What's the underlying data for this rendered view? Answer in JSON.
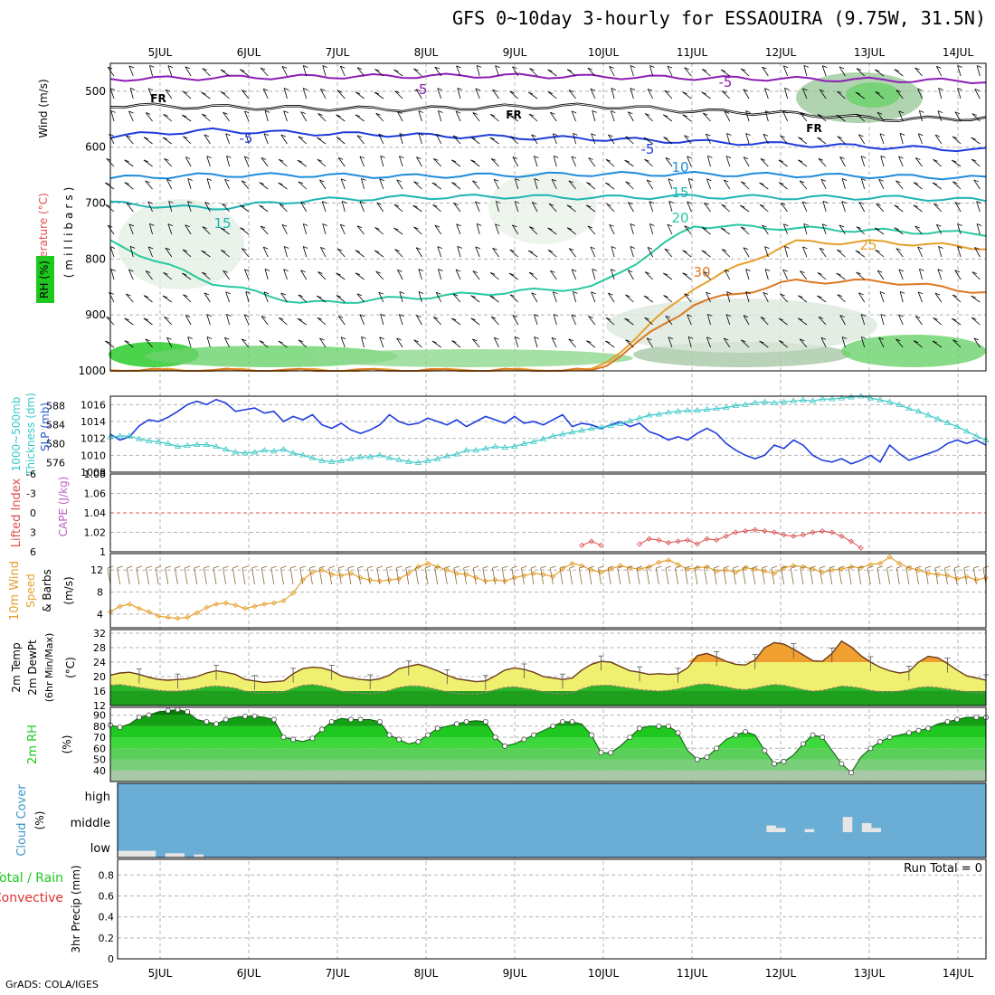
{
  "title": "GFS 0~10day 3-hourly for ESSAOUIRA (9.75W, 31.5N)",
  "credit": "GrADS: COLA/IGES",
  "run_total": "Run Total = 0",
  "colors": {
    "grid": "#b4b4b4",
    "slp": "#1e3cdc",
    "thickness": "#3cc8c8",
    "wind10m": "#e6a02d",
    "barb": "#8a6a3c",
    "cape_zero": "#e05050",
    "cape_line": "#dc5050",
    "rh2m": "#1ec81e",
    "cloud": "#6aaed6",
    "cloud_bar": "#e6e6e6",
    "temp_fill_low": "#f0f070",
    "temp_fill_high": "#f0a030",
    "dewpt_band": "#28b428"
  },
  "chart_data": [
    {
      "type": "contour",
      "panel": "upper-air",
      "ylabel": [
        "Temperature (°C)",
        "Wind (m/s)",
        "(millibars)",
        "RH (%)"
      ],
      "x_ticks": [
        "5JUL",
        "6JUL",
        "7JUL",
        "8JUL",
        "9JUL",
        "10JUL",
        "11JUL",
        "12JUL",
        "13JUL",
        "14JUL"
      ],
      "y_ticks": [
        500,
        600,
        700,
        800,
        900,
        1000
      ],
      "ylim": [
        450,
        1000
      ],
      "contour_labels": [
        "-5",
        "-5",
        "FR",
        "FR",
        "FR",
        "-5",
        "-5",
        "10",
        "15",
        "20",
        "15",
        "25",
        "30"
      ],
      "isotherms": [
        {
          "value": "-5",
          "color": "#8c1eb4",
          "p": [
            478,
            476,
            474,
            473,
            472,
            474,
            476,
            478,
            480,
            482
          ]
        },
        {
          "value": "FR",
          "color": "#000000",
          "p": [
            525,
            528,
            530,
            532,
            528,
            526,
            535,
            540,
            550,
            548
          ]
        },
        {
          "value": "-5",
          "color": "#1e3cdc",
          "p": [
            580,
            570,
            575,
            578,
            582,
            585,
            590,
            595,
            600,
            605
          ]
        },
        {
          "value": "10",
          "color": "#1e8cdc",
          "p": [
            655,
            650,
            650,
            652,
            650,
            648,
            648,
            650,
            652,
            655
          ]
        },
        {
          "value": "15",
          "color": "#1eb4b4",
          "p": [
            700,
            710,
            695,
            690,
            688,
            690,
            688,
            690,
            690,
            695
          ]
        },
        {
          "value": "20",
          "color": "#28c8a0",
          "p": [
            770,
            840,
            880,
            870,
            860,
            850,
            740,
            745,
            750,
            755
          ]
        },
        {
          "value": "25",
          "color": "#e6a02d",
          "p": [
            1000,
            1000,
            1000,
            1000,
            1000,
            1000,
            850,
            770,
            770,
            780
          ]
        },
        {
          "value": "30",
          "color": "#dc7820",
          "p": [
            1000,
            1000,
            1000,
            1000,
            1000,
            1000,
            880,
            840,
            840,
            860
          ]
        }
      ]
    },
    {
      "type": "line",
      "panel": "slp-thickness",
      "ylabel_left": [
        "1000~500mb",
        "Thickness (dm)"
      ],
      "ylabel_right": "SLP (mb)",
      "y_ticks_left": [
        576,
        580,
        584,
        588
      ],
      "y_ticks_right": [
        1008,
        1010,
        1012,
        1014,
        1016
      ],
      "ylim_right": [
        1008,
        1017
      ],
      "ylim_left": [
        574,
        590
      ],
      "series": [
        {
          "axis": "right",
          "values": [
            1012.5,
            1011.8,
            1012.2,
            1013.5,
            1014.2,
            1014.0,
            1014.5,
            1015.2,
            1016.0,
            1016.4,
            1016.0,
            1016.6,
            1016.2,
            1015.2,
            1015.4,
            1015.6,
            1015.0,
            1015.2,
            1014.0,
            1014.6,
            1014.2,
            1014.8,
            1013.6,
            1013.2,
            1013.8,
            1013.0,
            1012.6,
            1013.0,
            1013.6,
            1014.8,
            1014.0,
            1013.6,
            1013.8,
            1014.4,
            1014.0,
            1013.6,
            1014.2,
            1013.4,
            1014.0,
            1014.6,
            1014.2,
            1013.8,
            1014.6,
            1013.8,
            1014.0,
            1013.6,
            1014.2,
            1014.8,
            1013.4,
            1013.8,
            1013.6,
            1013.2,
            1013.6,
            1014.0,
            1013.4,
            1013.8,
            1012.8,
            1012.4,
            1011.8,
            1012.2,
            1011.8,
            1012.6,
            1013.2,
            1012.6,
            1011.4,
            1010.6,
            1010.0,
            1009.6,
            1010.0,
            1011.2,
            1010.8,
            1011.8,
            1011.2,
            1010.0,
            1009.4,
            1009.2,
            1009.6,
            1009.0,
            1009.4,
            1010.0,
            1009.2,
            1011.2,
            1010.2,
            1009.4,
            1009.8,
            1010.2,
            1010.6,
            1011.4,
            1011.8,
            1011.4,
            1011.8,
            1011.2
          ]
        },
        {
          "axis": "left",
          "values": [
            581.4,
            581.6,
            581.6,
            581.0,
            580.6,
            580.4,
            580.0,
            579.4,
            579.6,
            579.8,
            579.8,
            579.4,
            578.8,
            578.2,
            578.0,
            578.2,
            578.6,
            578.4,
            578.8,
            578.0,
            577.6,
            577.0,
            576.4,
            576.2,
            576.4,
            576.8,
            577.2,
            577.2,
            577.6,
            577.0,
            576.6,
            576.2,
            576.0,
            576.4,
            576.8,
            577.4,
            577.8,
            578.6,
            578.6,
            579.0,
            579.4,
            579.2,
            579.4,
            580.0,
            580.4,
            581.0,
            581.6,
            582.0,
            582.4,
            582.8,
            583.2,
            583.4,
            583.8,
            584.2,
            584.8,
            585.4,
            586.0,
            586.2,
            586.6,
            586.8,
            587.0,
            587.0,
            587.2,
            587.4,
            587.6,
            588.0,
            588.2,
            588.6,
            588.8,
            588.6,
            588.8,
            589.0,
            589.2,
            589.0,
            589.4,
            589.4,
            589.6,
            589.8,
            590.0,
            589.6,
            589.2,
            588.8,
            588.2,
            587.4,
            586.8,
            586.0,
            585.2,
            584.4,
            583.6,
            582.6,
            581.6,
            580.8
          ]
        }
      ]
    },
    {
      "type": "line",
      "panel": "lifted-index-cape",
      "ylabel_left": "Lifted Index",
      "ylabel_right": "CAPE (J/kg)",
      "y_ticks_left": [
        -6,
        -3,
        0,
        3,
        6
      ],
      "y_ticks_right": [
        1,
        1.02,
        1.04,
        1.06,
        1.08
      ],
      "ylim_left": [
        -6,
        6
      ],
      "cape_segments": [
        {
          "x_start": 49,
          "values": [
            5.0,
            4.4,
            5.0
          ]
        },
        {
          "x_start": 55,
          "values": [
            4.8,
            4.0,
            4.2,
            4.6,
            4.4,
            4.2,
            4.8,
            4.0,
            4.2,
            3.6,
            3.0,
            2.8,
            2.6,
            2.8,
            3.0,
            3.4,
            3.6,
            3.4,
            3.0,
            2.8,
            3.0,
            3.6,
            4.4,
            5.4
          ]
        }
      ]
    },
    {
      "type": "line",
      "panel": "wind10m",
      "ylabel": [
        "10m Wind",
        "Speed",
        "& Barbs",
        "(m/s)"
      ],
      "y_ticks": [
        4,
        8,
        12
      ],
      "ylim": [
        1.5,
        15
      ],
      "series": [
        {
          "name": "",
          "values": [
            4.4,
            5.4,
            5.8,
            5.0,
            4.4,
            3.6,
            3.4,
            3.2,
            3.4,
            4.2,
            5.2,
            5.8,
            6.0,
            5.6,
            5.0,
            5.4,
            5.8,
            6.0,
            6.4,
            7.8,
            10.2,
            11.6,
            12.0,
            11.2,
            11.0,
            11.4,
            10.6,
            10.2,
            10.0,
            10.2,
            10.4,
            11.4,
            12.6,
            13.2,
            12.6,
            12.0,
            11.4,
            11.2,
            10.6,
            10.0,
            10.2,
            10.0,
            10.6,
            11.0,
            11.4,
            11.2,
            10.8,
            12.2,
            13.2,
            12.8,
            12.0,
            11.6,
            12.2,
            12.8,
            12.4,
            12.2,
            12.6,
            13.4,
            13.8,
            13.0,
            12.2,
            12.4,
            12.6,
            11.8,
            12.0,
            11.6,
            12.4,
            12.2,
            11.8,
            11.4,
            12.4,
            12.8,
            12.6,
            12.2,
            11.6,
            12.0,
            12.2,
            12.6,
            12.4,
            13.0,
            13.2,
            14.4,
            13.2,
            12.4,
            12.0,
            11.4,
            11.2,
            11.0,
            10.4,
            10.8,
            10.2,
            10.6
          ]
        }
      ]
    },
    {
      "type": "area",
      "panel": "2m-temp",
      "ylabel": [
        "2m Temp",
        "2m DewPt",
        "(6hr Min/Max)",
        "(°C)"
      ],
      "y_ticks": [
        12,
        16,
        20,
        24,
        28,
        32
      ],
      "ylim": [
        12,
        33
      ],
      "series": [
        {
          "name": "2m Temp",
          "values": [
            20.4,
            21.0,
            21.2,
            20.6,
            19.8,
            19.2,
            19.0,
            19.2,
            19.4,
            20.0,
            21.0,
            21.6,
            21.2,
            20.6,
            19.2,
            18.8,
            18.4,
            18.6,
            18.8,
            20.8,
            22.2,
            22.6,
            22.4,
            21.6,
            20.2,
            19.6,
            19.2,
            19.0,
            19.4,
            20.4,
            22.2,
            22.8,
            23.4,
            22.6,
            21.6,
            20.4,
            19.4,
            19.0,
            18.6,
            18.8,
            20.2,
            21.8,
            22.4,
            22.0,
            21.2,
            20.0,
            19.6,
            19.2,
            19.6,
            21.8,
            23.4,
            24.2,
            24.0,
            22.8,
            21.6,
            21.2,
            20.6,
            20.8,
            20.6,
            20.8,
            22.4,
            25.8,
            26.4,
            25.4,
            24.2,
            23.4,
            23.2,
            24.6,
            28.0,
            29.4,
            29.0,
            27.6,
            26.0,
            24.4,
            24.2,
            26.4,
            29.8,
            28.2,
            25.8,
            24.0,
            22.6,
            21.6,
            21.0,
            21.4,
            24.0,
            25.6,
            25.2,
            23.6,
            21.8,
            20.2,
            19.6,
            19.0
          ]
        },
        {
          "name": "2m DewPt",
          "values": [
            17.6,
            17.8,
            17.4,
            17.0,
            16.6,
            16.2,
            16.0,
            16.0,
            16.2,
            16.6,
            17.2,
            17.4,
            17.2,
            16.8,
            16.0,
            15.6,
            15.4,
            15.6,
            15.8,
            16.8,
            17.6,
            17.8,
            17.4,
            16.8,
            16.0,
            15.6,
            15.4,
            15.2,
            15.6,
            16.2,
            17.0,
            17.4,
            17.4,
            17.0,
            16.4,
            15.8,
            15.4,
            15.2,
            15.2,
            15.6,
            16.4,
            17.0,
            17.2,
            16.8,
            16.4,
            15.8,
            15.4,
            15.2,
            15.6,
            16.6,
            17.4,
            17.6,
            17.6,
            17.2,
            16.8,
            16.4,
            16.2,
            16.0,
            16.2,
            16.6,
            17.2,
            17.8,
            18.0,
            17.6,
            17.2,
            16.6,
            16.4,
            16.8,
            17.4,
            17.8,
            17.6,
            17.0,
            16.4,
            16.0,
            16.2,
            16.8,
            17.4,
            17.2,
            16.8,
            16.2,
            15.8,
            15.8,
            16.0,
            16.4,
            17.0,
            17.2,
            17.0,
            16.6,
            16.2,
            15.8,
            15.6,
            15.4
          ]
        }
      ]
    },
    {
      "type": "area",
      "panel": "2m-rh",
      "ylabel": [
        "2m RH",
        "(%)"
      ],
      "y_ticks": [
        40,
        50,
        60,
        70,
        80,
        90
      ],
      "ylim": [
        30,
        97
      ],
      "values": [
        81,
        79,
        82,
        88,
        90,
        93,
        94,
        95,
        93,
        86,
        84,
        82,
        86,
        88,
        89,
        89,
        88,
        86,
        70,
        68,
        66,
        69,
        77,
        84,
        87,
        86,
        86,
        86,
        84,
        72,
        68,
        64,
        66,
        72,
        78,
        80,
        82,
        84,
        85,
        84,
        70,
        62,
        64,
        68,
        72,
        76,
        80,
        84,
        84,
        82,
        72,
        56,
        56,
        62,
        70,
        78,
        80,
        80,
        80,
        74,
        58,
        50,
        52,
        60,
        68,
        72,
        75,
        72,
        58,
        46,
        48,
        54,
        64,
        72,
        70,
        58,
        46,
        38,
        52,
        60,
        66,
        70,
        72,
        74,
        76,
        78,
        82,
        84,
        86,
        88,
        88,
        88
      ],
      "markers": [
        81,
        76,
        80,
        93,
        96,
        95,
        82,
        68,
        66,
        84,
        88,
        88,
        86,
        64,
        84,
        82,
        84,
        84,
        80,
        70,
        84,
        78,
        62,
        80,
        80,
        76,
        84,
        80,
        56,
        80,
        82,
        80,
        82,
        80,
        82,
        80,
        49,
        76,
        80,
        60,
        74,
        70,
        52,
        46,
        82,
        76,
        82,
        58,
        56,
        64,
        84,
        60,
        72,
        72,
        38,
        58,
        70,
        76,
        72,
        66,
        78,
        82,
        80,
        66,
        62,
        74,
        88
      ]
    },
    {
      "type": "bar",
      "panel": "cloud-cover",
      "ylabel": [
        "Cloud Cover",
        "(%)"
      ],
      "levels": [
        "high",
        "middle",
        "low"
      ],
      "low": [
        {
          "start": 0,
          "end": 4,
          "pct": 20
        },
        {
          "start": 5,
          "end": 7,
          "pct": 10
        },
        {
          "start": 8,
          "end": 9,
          "pct": 5
        }
      ],
      "middle": [
        {
          "start": 68,
          "end": 69,
          "pct": 20
        },
        {
          "start": 69,
          "end": 70,
          "pct": 10
        },
        {
          "start": 72,
          "end": 73,
          "pct": 5
        },
        {
          "start": 76,
          "end": 77,
          "pct": 55
        },
        {
          "start": 78,
          "end": 79,
          "pct": 30
        },
        {
          "start": 79,
          "end": 80,
          "pct": 10
        }
      ]
    },
    {
      "type": "bar",
      "panel": "precip",
      "ylabel_left": [
        "Total / Rain",
        "Convective"
      ],
      "ylabel": "3hr Precip (mm)",
      "y_ticks": [
        0,
        0.2,
        0.4,
        0.6,
        0.8
      ],
      "ylim": [
        0,
        0.95
      ],
      "values": []
    }
  ]
}
